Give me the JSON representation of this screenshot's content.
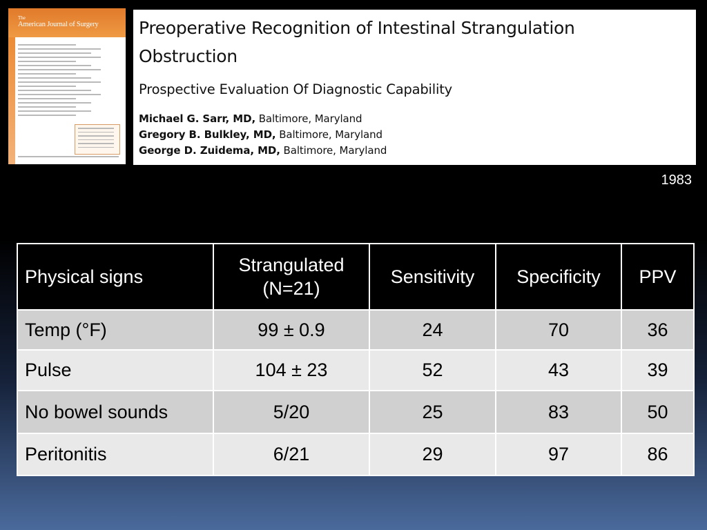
{
  "journal_cover": {
    "the": "The",
    "title": "American Journal of Surgery"
  },
  "paper": {
    "title_line1": "Preoperative Recognition of Intestinal Strangulation",
    "title_line2": "Obstruction",
    "subtitle": "Prospective Evaluation Of Diagnostic Capability",
    "authors": [
      {
        "name": "Michael G. Sarr, MD,",
        "location": "Baltimore, Maryland"
      },
      {
        "name": "Gregory B. Bulkley, MD,",
        "location": "Baltimore, Maryland"
      },
      {
        "name": "George D. Zuidema, MD,",
        "location": "Baltimore, Maryland"
      }
    ]
  },
  "year": "1983",
  "table": {
    "headers": [
      "Physical signs",
      "Strangulated\n(N=21)",
      "Sensitivity",
      "Specificity",
      "PPV"
    ],
    "rows": [
      [
        "Temp (°F)",
        "99 ± 0.9",
        "24",
        "70",
        "36"
      ],
      [
        "Pulse",
        "104 ± 23",
        "52",
        "43",
        "39"
      ],
      [
        "No bowel sounds",
        "5/20",
        "25",
        "83",
        "50"
      ],
      [
        "Peritonitis",
        "6/21",
        "29",
        "97",
        "86"
      ]
    ]
  }
}
